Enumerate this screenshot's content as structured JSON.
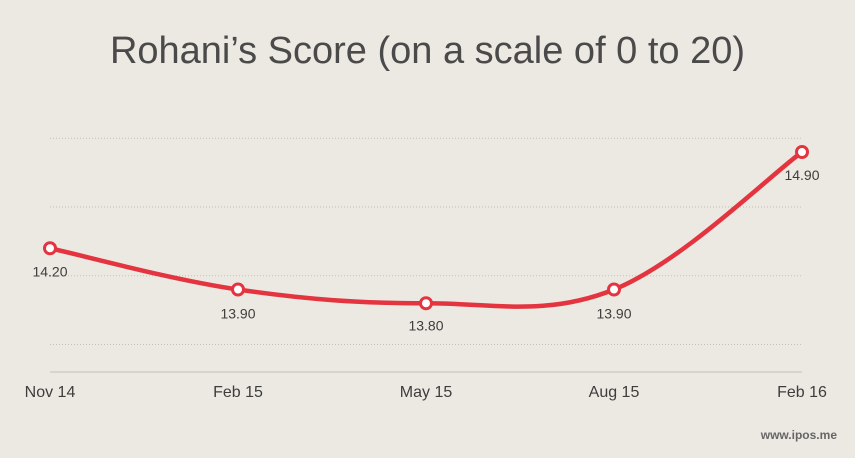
{
  "chart_data": {
    "type": "line",
    "title": "Rohani’s Score (on a scale of 0 to 20)",
    "categories": [
      "Nov 14",
      "Feb 15",
      "May 15",
      "Aug 15",
      "Feb 16"
    ],
    "series": [
      {
        "values": [
          14.2,
          13.9,
          13.8,
          13.9,
          14.9
        ],
        "labels": [
          "14.20",
          "13.90",
          "13.80",
          "13.90",
          "14.90"
        ],
        "color": "#e3343f"
      }
    ],
    "xlabel": "",
    "ylabel": "",
    "ylim": [
      13.3,
      15.3
    ],
    "grid": true,
    "y_tick_labels_shown": false
  },
  "footer": {
    "source": "www.ipos.me"
  }
}
